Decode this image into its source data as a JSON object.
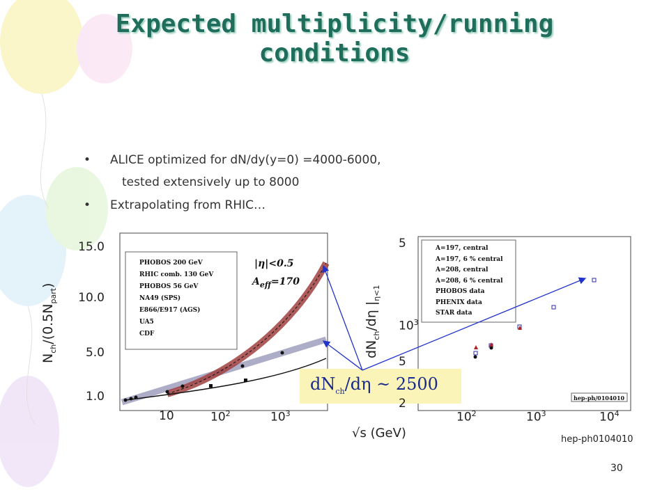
{
  "title": [
    "Expected multiplicity/running",
    "conditions"
  ],
  "bullets": [
    [
      "ALICE optimized for dN/dy(y=0) =4000-6000,",
      "tested extensively up to 8000"
    ],
    [
      "Extrapolating from RHIC…"
    ]
  ],
  "left_plot": {
    "y_label": {
      "a": "N",
      "a_sub": "ch",
      "b": "/(0.5N",
      "b_sub": "part",
      "c": ")"
    },
    "y_ticks": [
      "15.0",
      "10.0",
      "5.0",
      "1.0"
    ],
    "x_ticks": [
      {
        "base": "10"
      },
      {
        "base": "10",
        "exp": "2"
      },
      {
        "base": "10",
        "exp": "3"
      }
    ],
    "legend": [
      "PHOBOS 200 GeV",
      "RHIC comb. 130 GeV",
      "PHOBOS 56 GeV",
      "NA49 (SPS)",
      "E866/E917 (AGS)",
      "UA5",
      "CDF"
    ],
    "cut": "|η|<0.5",
    "aeff": {
      "a": "A",
      "sub": "eff",
      "b": "=170"
    }
  },
  "right_plot": {
    "y_label": {
      "a": "dN",
      "a_sub": "ch",
      "b": "/dη |",
      "b_sub": "η<1"
    },
    "y_ticks": [
      {
        "base": "5"
      },
      {
        "base": "10",
        "exp": "3"
      },
      {
        "base": "5"
      },
      {
        "base": "2"
      }
    ],
    "x_ticks": [
      {
        "base": "10",
        "exp": "2"
      },
      {
        "base": "10",
        "exp": "3"
      },
      {
        "base": "10",
        "exp": "4"
      }
    ],
    "legend": [
      "A=197, central",
      "A=197, 6 % central",
      "A=208, central",
      "A=208, 6 % central",
      "PHOBOS data",
      "PHENIX data",
      "STAR data"
    ],
    "ref": "hep-ph/0104010"
  },
  "x_label": "√s (GeV)",
  "annotation": {
    "a": "dN",
    "sub": "ch",
    "b": "/dη  ~ 2500"
  },
  "footer": "hep-ph0104010",
  "page": "30"
}
